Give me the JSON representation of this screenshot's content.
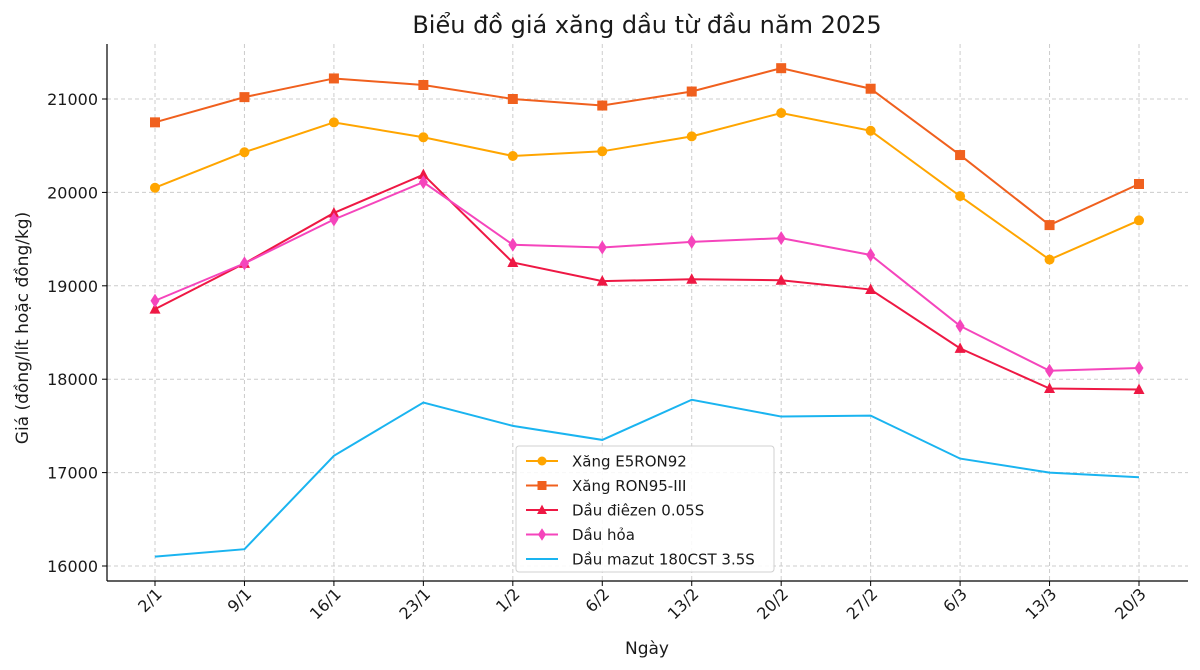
{
  "chart_data": {
    "type": "line",
    "title": "Biểu đồ giá xăng dầu từ đầu năm 2025",
    "xlabel": "Ngày",
    "ylabel": "Giá (đồng/lít hoặc đồng/kg)",
    "categories": [
      "2/1",
      "9/1",
      "16/1",
      "23/1",
      "1/2",
      "6/2",
      "13/2",
      "20/2",
      "27/2",
      "6/3",
      "13/3",
      "20/3"
    ],
    "yticks": [
      16000,
      17000,
      18000,
      19000,
      20000,
      21000
    ],
    "ylim": [
      15830,
      21600
    ],
    "grid": true,
    "legend_position": "lower center",
    "series": [
      {
        "name": "Xăng E5RON92",
        "color": "#FFA500",
        "marker": "circle",
        "values": [
          20050,
          20430,
          20750,
          20590,
          20390,
          20440,
          20600,
          20850,
          20660,
          19960,
          19280,
          19700
        ]
      },
      {
        "name": "Xăng RON95-III",
        "color": "#F0601E",
        "marker": "square",
        "values": [
          20750,
          21020,
          21220,
          21150,
          21000,
          20930,
          21080,
          21330,
          21110,
          20400,
          19650,
          20090
        ]
      },
      {
        "name": "Dầu điêzen 0.05S",
        "color": "#EE1844",
        "marker": "triangle",
        "values": [
          18750,
          19240,
          19780,
          20190,
          19250,
          19050,
          19070,
          19060,
          18960,
          18330,
          17900,
          17890
        ]
      },
      {
        "name": "Dầu hỏa",
        "color": "#F545BC",
        "marker": "diamond",
        "values": [
          18840,
          19240,
          19710,
          20110,
          19440,
          19410,
          19470,
          19510,
          19330,
          18570,
          18090,
          18120
        ]
      },
      {
        "name": "Dầu mazut 180CST 3.5S",
        "color": "#1AB4F0",
        "marker": "none",
        "values": [
          16100,
          16180,
          17180,
          17750,
          17500,
          17350,
          17780,
          17600,
          17610,
          17150,
          17000,
          16950
        ]
      }
    ]
  }
}
